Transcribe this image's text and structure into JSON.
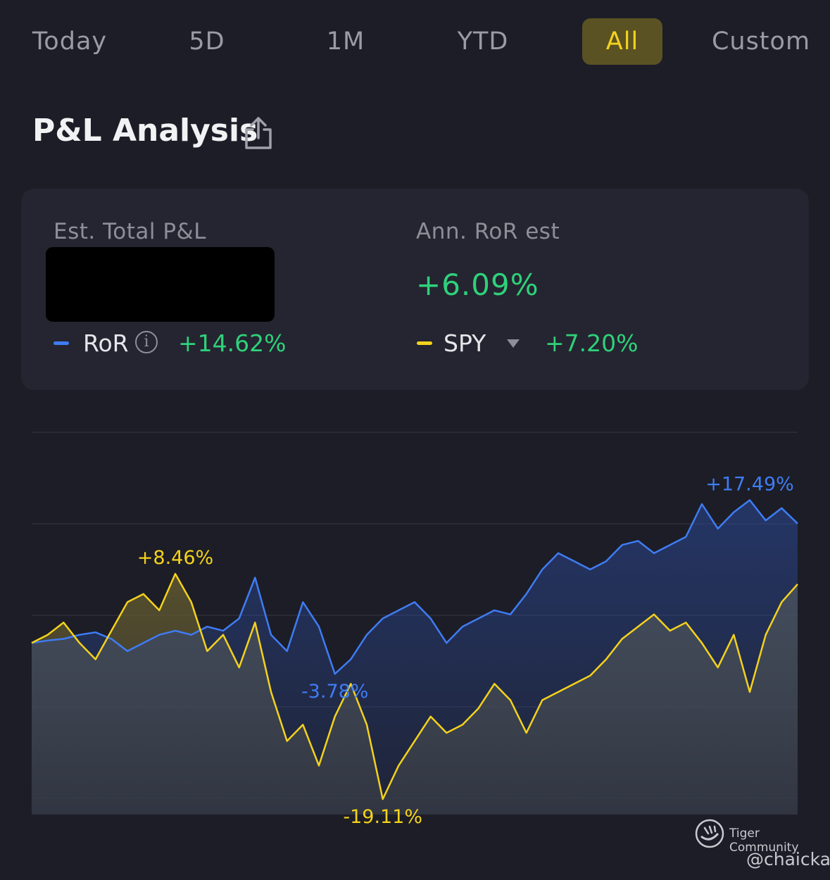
{
  "tabs": [
    {
      "label": "Today",
      "active": false
    },
    {
      "label": "5D",
      "active": false
    },
    {
      "label": "1M",
      "active": false
    },
    {
      "label": "YTD",
      "active": false
    },
    {
      "label": "All",
      "active": true
    },
    {
      "label": "Custom",
      "active": false
    }
  ],
  "header": {
    "title": "P&L Analysis",
    "share_icon": "share-icon"
  },
  "summary": {
    "total_pnl_label": "Est. Total P&L",
    "ann_ror_label": "Ann. RoR est",
    "ann_ror_value": "+6.09%",
    "ror_legend": {
      "name": "RoR",
      "value": "+14.62%",
      "color": "#3f7cf4"
    },
    "benchmark_legend": {
      "name": "SPY",
      "value": "+7.20%",
      "color": "#f4d21c"
    }
  },
  "chart_data": {
    "type": "line",
    "series": [
      {
        "name": "RoR",
        "color": "#3f7cf4",
        "values": [
          0.0,
          0.3,
          0.5,
          1.0,
          1.3,
          0.5,
          -1.0,
          0.0,
          1.0,
          1.5,
          1.0,
          2.0,
          1.5,
          3.0,
          8.0,
          1.0,
          -1.0,
          5.0,
          2.0,
          -3.78,
          -2.0,
          1.0,
          3.0,
          4.0,
          5.0,
          3.0,
          0.0,
          2.0,
          3.0,
          4.0,
          3.5,
          6.0,
          9.0,
          11.0,
          10.0,
          9.0,
          10.0,
          12.0,
          12.5,
          11.0,
          12.0,
          13.0,
          17.0,
          14.0,
          16.0,
          17.49,
          15.0,
          16.5,
          14.62
        ]
      },
      {
        "name": "SPY",
        "color": "#f4d21c",
        "values": [
          0.0,
          1.0,
          2.5,
          0.0,
          -2.0,
          1.5,
          5.0,
          6.0,
          4.0,
          8.46,
          5.0,
          -1.0,
          1.0,
          -3.0,
          2.5,
          -6.0,
          -12.0,
          -10.0,
          -15.0,
          -9.0,
          -5.0,
          -10.0,
          -19.11,
          -15.0,
          -12.0,
          -9.0,
          -11.0,
          -10.0,
          -8.0,
          -5.0,
          -7.0,
          -11.0,
          -7.0,
          -6.0,
          -5.0,
          -4.0,
          -2.0,
          0.5,
          2.0,
          3.5,
          1.5,
          2.5,
          0.0,
          -3.0,
          1.0,
          -6.0,
          1.0,
          5.0,
          7.2
        ]
      }
    ],
    "annotations": [
      {
        "series": "RoR",
        "label": "+17.49%",
        "kind": "max"
      },
      {
        "series": "RoR",
        "label": "-3.78%",
        "kind": "min"
      },
      {
        "series": "SPY",
        "label": "+8.46%",
        "kind": "max"
      },
      {
        "series": "SPY",
        "label": "-19.11%",
        "kind": "min"
      }
    ],
    "ylim": [
      -21,
      27
    ],
    "grid": true
  },
  "footer": {
    "brand": "Tiger Community",
    "user": "@chaicka"
  }
}
